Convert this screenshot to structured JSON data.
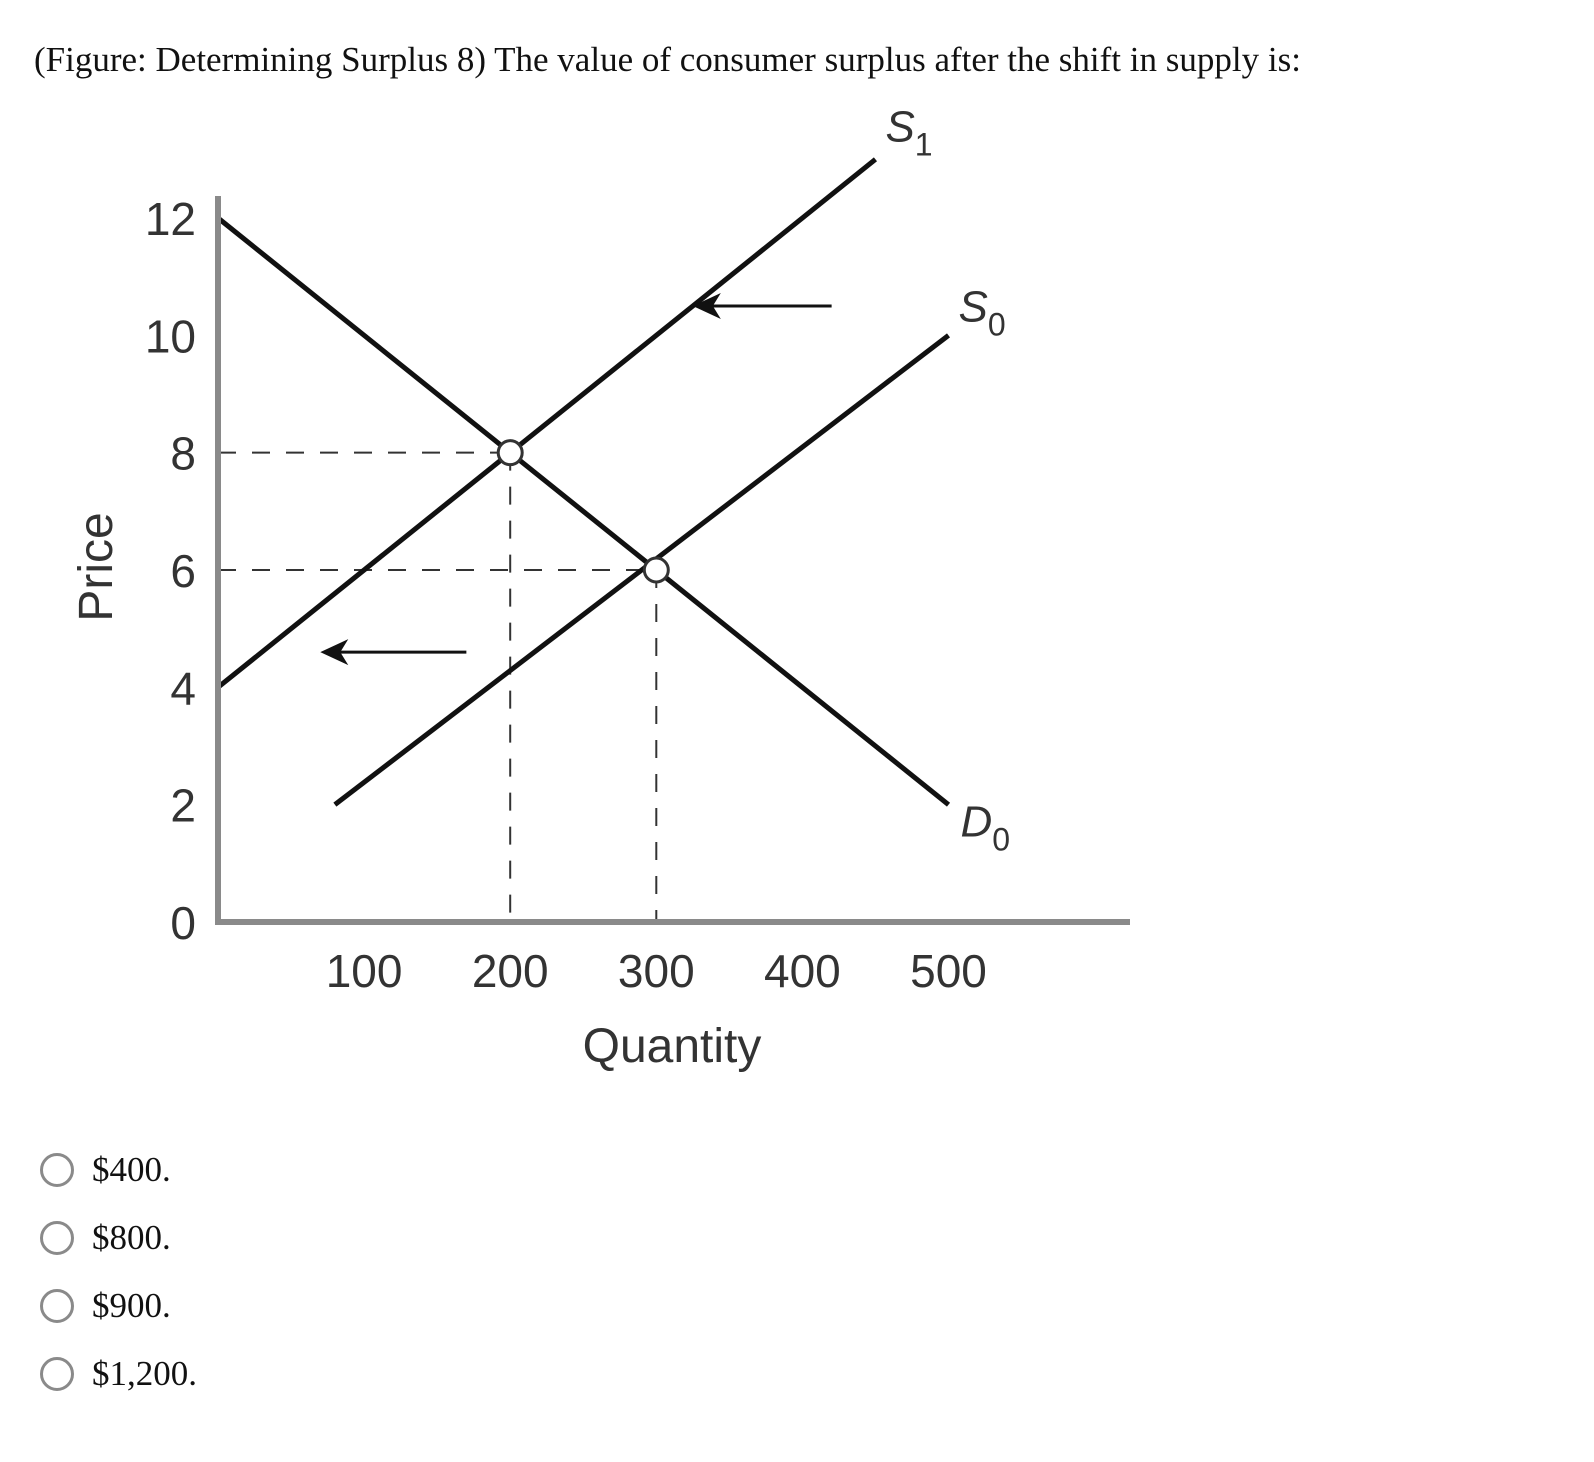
{
  "question": {
    "text": "(Figure: Determining Surplus 8) The value of consumer surplus after the shift in supply is:"
  },
  "options": [
    {
      "label": "$400."
    },
    {
      "label": "$800."
    },
    {
      "label": "$900."
    },
    {
      "label": "$1,200."
    }
  ],
  "chart_data": {
    "type": "line",
    "xlabel": "Quantity",
    "ylabel": "Price",
    "xlim": [
      0,
      600
    ],
    "ylim": [
      0,
      12
    ],
    "x_ticks": [
      100,
      200,
      300,
      400,
      500
    ],
    "y_ticks": [
      0,
      2,
      4,
      6,
      8,
      10,
      12
    ],
    "grid": false,
    "series": [
      {
        "name": "D",
        "subscript": "0",
        "points": [
          [
            0,
            12
          ],
          [
            500,
            2
          ]
        ]
      },
      {
        "name": "S",
        "subscript": "0",
        "points": [
          [
            80,
            2
          ],
          [
            500,
            10
          ]
        ]
      },
      {
        "name": "S",
        "subscript": "1",
        "points": [
          [
            0,
            4
          ],
          [
            450,
            13
          ]
        ]
      }
    ],
    "equilibria": [
      {
        "x": 200,
        "y": 8
      },
      {
        "x": 300,
        "y": 6
      }
    ],
    "shift_arrows": [
      {
        "from": [
          420,
          10.5
        ],
        "to": [
          325,
          10.5
        ]
      },
      {
        "from": [
          170,
          4.6
        ],
        "to": [
          70,
          4.6
        ]
      }
    ],
    "colors": {
      "curve": "#111111",
      "axis": "#8a8a8a",
      "guide": "#333333"
    }
  }
}
